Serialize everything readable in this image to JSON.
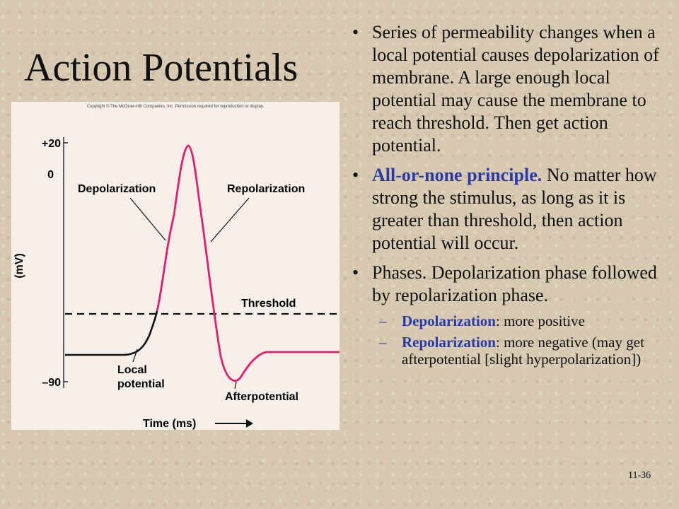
{
  "slide": {
    "title": "Action Potentials",
    "number": "11-36"
  },
  "figure": {
    "copyright": "Copyright © The McGraw-Hill Companies, Inc. Permission required for reproduction or display.",
    "ytick_top": "+20",
    "ytick_zero": "0",
    "ytick_bottom": "–90",
    "ylabel": "(mV)",
    "xlabel": "Time (ms)",
    "label_depolarization": "Depolarization",
    "label_repolarization": "Repolarization",
    "label_threshold": "Threshold",
    "label_local_1": "Local",
    "label_local_2": "potential",
    "label_afterpotential": "Afterpotential"
  },
  "bullets": [
    {
      "text": "Series of permeability changes when a local potential causes depolarization of membrane.  A large enough local potential may cause the membrane to reach threshold.  Then get action potential."
    },
    {
      "highlight": "All-or-none principle.",
      "text": " No matter how strong the stimulus, as long as it is greater than threshold, then action potential will occur."
    },
    {
      "text": "Phases.  Depolarization phase followed by repolarization phase.",
      "subitems": [
        {
          "term": "Depolarization",
          "text": ": more positive"
        },
        {
          "term": "Repolarization",
          "text": ": more negative (may get afterpotential [slight hyperpolarization])"
        }
      ]
    }
  ],
  "colors": {
    "accent": "#2a3aa8",
    "curve_pink": "#e0206e",
    "background": "#d6c9b0"
  }
}
